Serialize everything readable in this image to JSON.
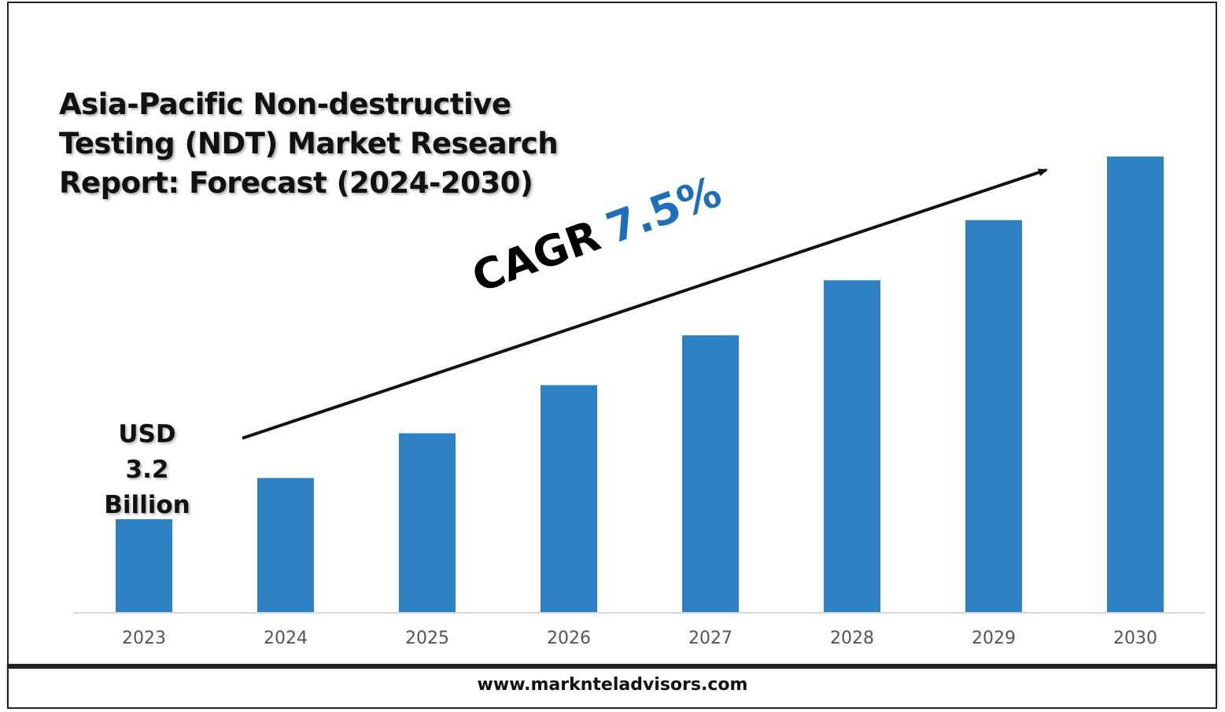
{
  "chart_data": {
    "type": "bar",
    "title": "Asia-Pacific Non-destructive Testing (NDT) Market Research Report: Forecast (2024-2030)",
    "categories": [
      "2023",
      "2024",
      "2025",
      "2026",
      "2027",
      "2028",
      "2029",
      "2030"
    ],
    "values": [
      3.2,
      3.44,
      3.7,
      3.98,
      4.27,
      4.59,
      4.94,
      5.31
    ],
    "value_unit": "USD Billion",
    "bar_color": "#2e81c3",
    "annotation": {
      "usd_lines": [
        "USD",
        "3.2",
        "Billion"
      ],
      "cagr_label": "CAGR",
      "cagr_value": "7.5%",
      "cagr_value_color": "#1f6fb8"
    },
    "grid": false,
    "legend": "none"
  },
  "footer": {
    "website": "www.marknteladvisors.com"
  }
}
